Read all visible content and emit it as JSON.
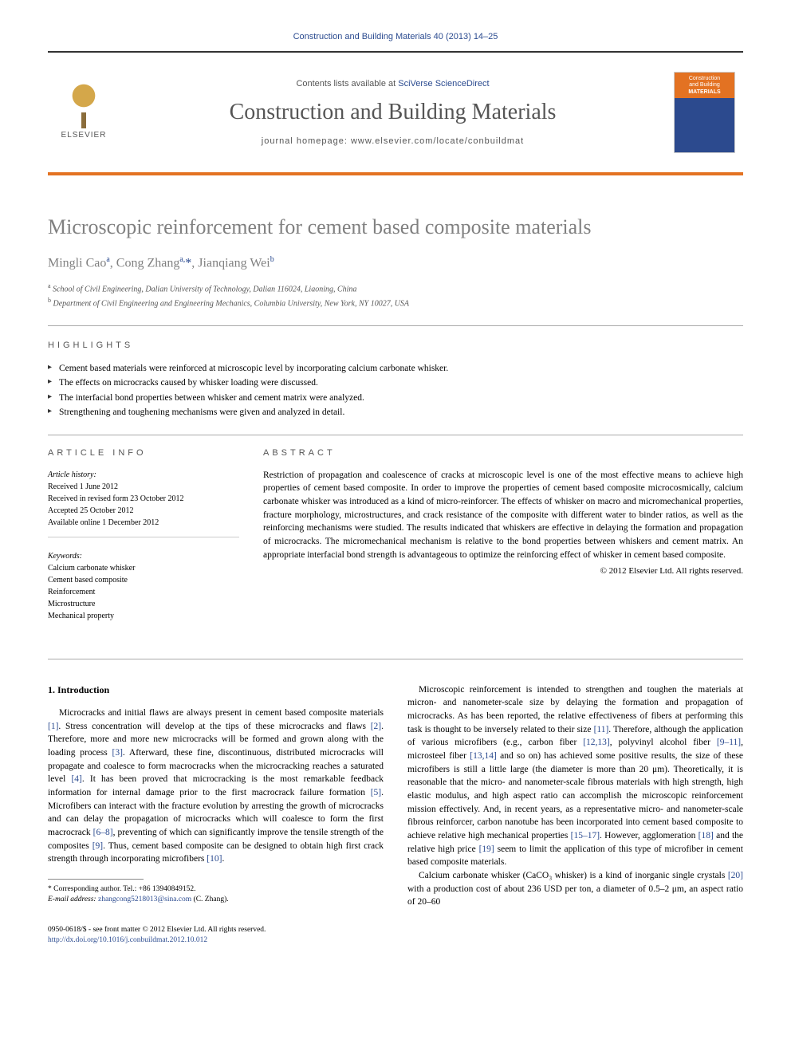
{
  "header": {
    "citation": "Construction and Building Materials 40 (2013) 14–25",
    "contents_prefix": "Contents lists available at ",
    "contents_link": "SciVerse ScienceDirect",
    "journal_title": "Construction and Building Materials",
    "homepage_prefix": "journal homepage: ",
    "homepage_url": "www.elsevier.com/locate/conbuildmat",
    "elsevier_label": "ELSEVIER",
    "cover_top_line1": "Construction",
    "cover_top_line2": "and Building",
    "cover_top_line3": "MATERIALS"
  },
  "article": {
    "title": "Microscopic reinforcement for cement based composite materials",
    "authors_html": "Mingli Cao<sup>a</sup>, Cong Zhang<sup>a,</sup><a>*</a>, Jianqiang Wei<sup>b</sup>",
    "affiliations": [
      {
        "sup": "a",
        "text": "School of Civil Engineering, Dalian University of Technology, Dalian 116024, Liaoning, China"
      },
      {
        "sup": "b",
        "text": "Department of Civil Engineering and Engineering Mechanics, Columbia University, New York, NY 10027, USA"
      }
    ]
  },
  "highlights": {
    "label": "HIGHLIGHTS",
    "items": [
      "Cement based materials were reinforced at microscopic level by incorporating calcium carbonate whisker.",
      "The effects on microcracks caused by whisker loading were discussed.",
      "The interfacial bond properties between whisker and cement matrix were analyzed.",
      "Strengthening and toughening mechanisms were given and analyzed in detail."
    ]
  },
  "info": {
    "label": "ARTICLE INFO",
    "history_label": "Article history:",
    "history": [
      "Received 1 June 2012",
      "Received in revised form 23 October 2012",
      "Accepted 25 October 2012",
      "Available online 1 December 2012"
    ],
    "keywords_label": "Keywords:",
    "keywords": [
      "Calcium carbonate whisker",
      "Cement based composite",
      "Reinforcement",
      "Microstructure",
      "Mechanical property"
    ]
  },
  "abstract": {
    "label": "ABSTRACT",
    "text": "Restriction of propagation and coalescence of cracks at microscopic level is one of the most effective means to achieve high properties of cement based composite. In order to improve the properties of cement based composite microcosmically, calcium carbonate whisker was introduced as a kind of micro-reinforcer. The effects of whisker on macro and micromechanical properties, fracture morphology, microstructures, and crack resistance of the composite with different water to binder ratios, as well as the reinforcing mechanisms were studied. The results indicated that whiskers are effective in delaying the formation and propagation of microcracks. The micromechanical mechanism is relative to the bond properties between whiskers and cement matrix. An appropriate interfacial bond strength is advantageous to optimize the reinforcing effect of whisker in cement based composite.",
    "copyright": "© 2012 Elsevier Ltd. All rights reserved."
  },
  "body": {
    "heading": "1. Introduction",
    "col1_p1": "Microcracks and initial flaws are always present in cement based composite materials [1]. Stress concentration will develop at the tips of these microcracks and flaws [2]. Therefore, more and more new microcracks will be formed and grown along with the loading process [3]. Afterward, these fine, discontinuous, distributed microcracks will propagate and coalesce to form macrocracks when the microcracking reaches a saturated level [4]. It has been proved that microcracking is the most remarkable feedback information for internal damage prior to the first macrocrack failure formation [5]. Microfibers can interact with the fracture evolution by arresting the growth of microcracks and can delay the propagation of microcracks which will coalesce to form the first macrocrack [6–8], preventing of which can significantly improve the tensile strength of the composites [9]. Thus, cement based composite can be designed to obtain high first crack strength through incorporating microfibers [10].",
    "col2_p1": "Microscopic reinforcement is intended to strengthen and toughen the materials at micron- and nanometer-scale size by delaying the formation and propagation of microcracks. As has been reported, the relative effectiveness of fibers at performing this task is thought to be inversely related to their size [11]. Therefore, although the application of various microfibers (e.g., carbon fiber [12,13], polyvinyl alcohol fiber [9–11], microsteel fiber [13,14] and so on) has achieved some positive results, the size of these microfibers is still a little large (the diameter is more than 20 μm). Theoretically, it is reasonable that the micro- and nanometer-scale fibrous materials with high strength, high elastic modulus, and high aspect ratio can accomplish the microscopic reinforcement mission effectively. And, in recent years, as a representative micro- and nanometer-scale fibrous reinforcer, carbon nanotube has been incorporated into cement based composite to achieve relative high mechanical properties [15–17]. However, agglomeration [18] and the relative high price [19] seem to limit the application of this type of microfiber in cement based composite materials.",
    "col2_p2": "Calcium carbonate whisker (CaCO₃ whisker) is a kind of inorganic single crystals [20] with a production cost of about 236 USD per ton, a diameter of 0.5–2 μm, an aspect ratio of 20–60"
  },
  "footnote": {
    "corr_label": "* Corresponding author. Tel.: +86 13940849152.",
    "email_label": "E-mail address:",
    "email": "zhangcong5218013@sina.com",
    "email_suffix": "(C. Zhang)."
  },
  "footer": {
    "line1": "0950-0618/$ - see front matter © 2012 Elsevier Ltd. All rights reserved.",
    "doi": "http://dx.doi.org/10.1016/j.conbuildmat.2012.10.012"
  }
}
